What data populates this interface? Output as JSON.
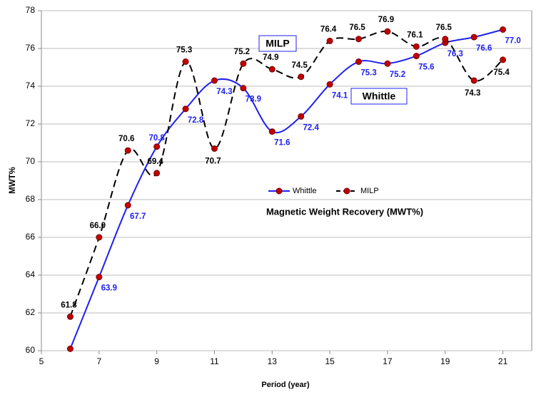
{
  "chart_data": {
    "type": "line",
    "x_label": "Period (year)",
    "y_label": "MWT%",
    "annotations": [
      "MILP",
      "Whittle",
      "Magnetic Weight Recovery (MWT%)"
    ],
    "x": [
      6,
      7,
      8,
      9,
      10,
      11,
      12,
      13,
      14,
      15,
      16,
      17,
      18,
      19,
      20,
      21
    ],
    "series": [
      {
        "name": "Whittle",
        "color": "#2020f0",
        "dashed": false,
        "values": [
          60.1,
          63.9,
          67.7,
          70.8,
          72.8,
          74.3,
          73.9,
          71.6,
          72.4,
          74.1,
          75.3,
          75.2,
          75.6,
          76.3,
          76.6,
          77.0
        ],
        "value_labels": [
          null,
          "63.9",
          "67.7",
          "70.8",
          "72.8",
          "74.3",
          "73.9",
          "71.6",
          "72.4",
          "74.1",
          "75.3",
          "75.2",
          "75.6",
          "76.3",
          "76.6",
          "77.0"
        ]
      },
      {
        "name": "MILP",
        "color": "#000000",
        "dashed": true,
        "values": [
          61.8,
          66.0,
          70.6,
          69.4,
          75.3,
          70.7,
          75.2,
          74.9,
          74.5,
          76.4,
          76.5,
          76.9,
          76.1,
          76.5,
          74.3,
          75.4
        ],
        "value_labels": [
          "61.8",
          "66.0",
          "70.6",
          "69.4",
          "75.3",
          "70.7",
          "75.2",
          "74.9",
          "74.5",
          "76.4",
          "76.5",
          "76.9",
          "76.1",
          "76.5",
          "74.3",
          "75.4"
        ]
      }
    ],
    "marker_color": "#c00000",
    "xlim": [
      5,
      22
    ],
    "xticks": [
      5,
      7,
      9,
      11,
      13,
      15,
      17,
      19,
      21
    ],
    "ylim": [
      60,
      78
    ],
    "yticks": [
      60,
      62,
      64,
      66,
      68,
      70,
      72,
      74,
      76,
      78
    ],
    "grid": true
  }
}
